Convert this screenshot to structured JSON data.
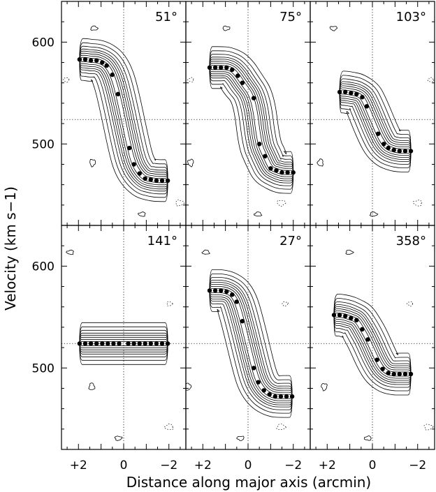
{
  "figure": {
    "xlabel": "Distance along major axis (arcmin)",
    "ylabel": "Velocity (km s−1)"
  },
  "chart_data": {
    "type": "scatter",
    "xlabel": "Distance along major axis (arcmin)",
    "ylabel": "Velocity (km s−1)",
    "xlim": [
      2.75,
      -2.75
    ],
    "ylim": [
      420,
      640
    ],
    "x_ticks": [
      2,
      0,
      -2
    ],
    "x_tick_labels": [
      "+2",
      "0",
      "−2"
    ],
    "y_ticks": [
      500,
      600
    ],
    "y_tick_labels": [
      "500",
      "600"
    ],
    "reference_lines": {
      "x": 0,
      "y": 524
    },
    "grid": false,
    "panels": [
      {
        "label": "51°",
        "points": [
          {
            "x": 1.95,
            "y": 583
          },
          {
            "x": 1.7,
            "y": 583
          },
          {
            "x": 1.45,
            "y": 582
          },
          {
            "x": 1.2,
            "y": 582
          },
          {
            "x": 0.95,
            "y": 580
          },
          {
            "x": 0.75,
            "y": 577
          },
          {
            "x": 0.5,
            "y": 568
          },
          {
            "x": 0.25,
            "y": 549
          },
          {
            "x": -0.25,
            "y": 496
          },
          {
            "x": -0.45,
            "y": 480
          },
          {
            "x": -0.7,
            "y": 471
          },
          {
            "x": -0.95,
            "y": 466
          },
          {
            "x": -1.2,
            "y": 465
          },
          {
            "x": -1.45,
            "y": 464
          },
          {
            "x": -1.7,
            "y": 464
          },
          {
            "x": -1.95,
            "y": 464
          }
        ]
      },
      {
        "label": "75°",
        "points": [
          {
            "x": 1.7,
            "y": 575
          },
          {
            "x": 1.45,
            "y": 575
          },
          {
            "x": 1.2,
            "y": 575
          },
          {
            "x": 0.95,
            "y": 575
          },
          {
            "x": 0.7,
            "y": 573
          },
          {
            "x": 0.45,
            "y": 567
          },
          {
            "x": 0.25,
            "y": 560
          },
          {
            "x": -0.25,
            "y": 545
          },
          {
            "x": -0.5,
            "y": 500
          },
          {
            "x": -0.75,
            "y": 488
          },
          {
            "x": -1.0,
            "y": 476
          },
          {
            "x": -1.25,
            "y": 474
          },
          {
            "x": -1.5,
            "y": 472
          },
          {
            "x": -1.75,
            "y": 472
          },
          {
            "x": -2.0,
            "y": 472
          }
        ]
      },
      {
        "label": "103°",
        "points": [
          {
            "x": 1.45,
            "y": 551
          },
          {
            "x": 1.2,
            "y": 551
          },
          {
            "x": 0.95,
            "y": 550
          },
          {
            "x": 0.7,
            "y": 549
          },
          {
            "x": 0.45,
            "y": 546
          },
          {
            "x": 0.25,
            "y": 537
          },
          {
            "x": -0.25,
            "y": 510
          },
          {
            "x": -0.5,
            "y": 500
          },
          {
            "x": -0.7,
            "y": 496
          },
          {
            "x": -0.95,
            "y": 494
          },
          {
            "x": -1.2,
            "y": 493
          },
          {
            "x": -1.45,
            "y": 493
          },
          {
            "x": -1.7,
            "y": 493
          }
        ]
      },
      {
        "label": "141°",
        "points": [
          {
            "x": 1.95,
            "y": 524
          },
          {
            "x": 1.7,
            "y": 524
          },
          {
            "x": 1.45,
            "y": 524
          },
          {
            "x": 1.2,
            "y": 524
          },
          {
            "x": 0.95,
            "y": 524
          },
          {
            "x": 0.7,
            "y": 524
          },
          {
            "x": 0.45,
            "y": 524
          },
          {
            "x": 0.2,
            "y": 524
          },
          {
            "x": -0.2,
            "y": 524
          },
          {
            "x": -0.45,
            "y": 524
          },
          {
            "x": -0.7,
            "y": 524
          },
          {
            "x": -0.95,
            "y": 524
          },
          {
            "x": -1.2,
            "y": 524
          },
          {
            "x": -1.45,
            "y": 524
          },
          {
            "x": -1.7,
            "y": 524
          },
          {
            "x": -1.95,
            "y": 524
          }
        ]
      },
      {
        "label": "27°",
        "points": [
          {
            "x": 1.7,
            "y": 576
          },
          {
            "x": 1.45,
            "y": 576
          },
          {
            "x": 1.2,
            "y": 576
          },
          {
            "x": 0.95,
            "y": 575
          },
          {
            "x": 0.7,
            "y": 572
          },
          {
            "x": 0.5,
            "y": 565
          },
          {
            "x": 0.25,
            "y": 546
          },
          {
            "x": -0.25,
            "y": 500
          },
          {
            "x": -0.45,
            "y": 486
          },
          {
            "x": -0.7,
            "y": 478
          },
          {
            "x": -0.95,
            "y": 474
          },
          {
            "x": -1.2,
            "y": 472
          },
          {
            "x": -1.45,
            "y": 472
          },
          {
            "x": -1.7,
            "y": 472
          },
          {
            "x": -1.95,
            "y": 472
          }
        ]
      },
      {
        "label": "358°",
        "points": [
          {
            "x": 1.7,
            "y": 552
          },
          {
            "x": 1.45,
            "y": 552
          },
          {
            "x": 1.2,
            "y": 551
          },
          {
            "x": 0.95,
            "y": 549
          },
          {
            "x": 0.7,
            "y": 547
          },
          {
            "x": 0.45,
            "y": 538
          },
          {
            "x": 0.2,
            "y": 528
          },
          {
            "x": -0.2,
            "y": 508
          },
          {
            "x": -0.45,
            "y": 499
          },
          {
            "x": -0.7,
            "y": 495
          },
          {
            "x": -0.95,
            "y": 494
          },
          {
            "x": -1.2,
            "y": 494
          },
          {
            "x": -1.45,
            "y": 494
          },
          {
            "x": -1.7,
            "y": 494
          }
        ]
      }
    ]
  }
}
